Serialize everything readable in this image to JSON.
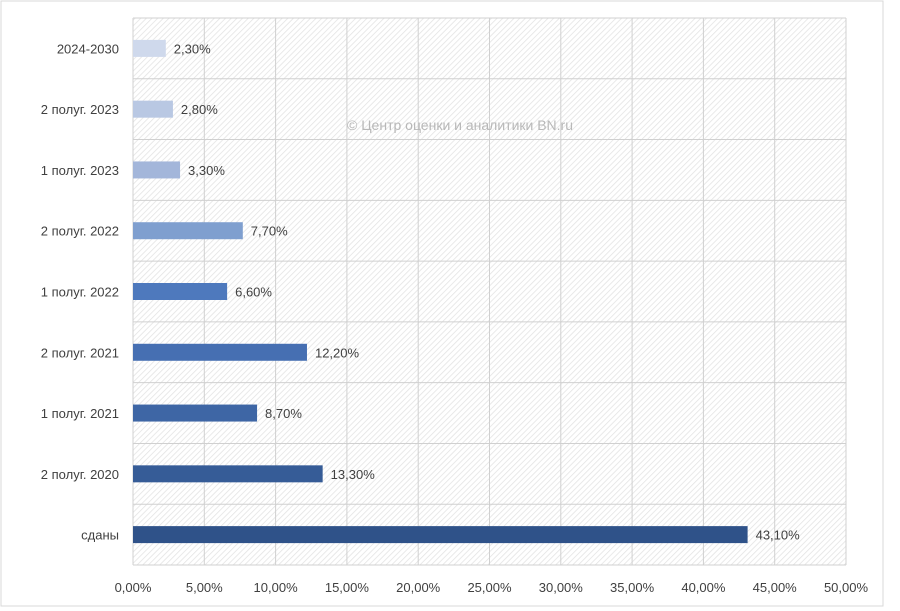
{
  "watermark": "© Центр оценки и аналитики BN.ru",
  "chart_data": {
    "type": "bar",
    "orientation": "horizontal",
    "categories": [
      "сданы",
      "2 полуг. 2020",
      "1 полуг. 2021",
      "2 полуг. 2021",
      "1 полуг. 2022",
      "2 полуг. 2022",
      "1 полуг. 2023",
      "2 полуг. 2023",
      "2024-2030"
    ],
    "values": [
      43.1,
      13.3,
      8.7,
      12.2,
      6.6,
      7.7,
      3.3,
      2.8,
      2.3
    ],
    "value_labels": [
      "43,10%",
      "13,30%",
      "8,70%",
      "12,20%",
      "6,60%",
      "7,70%",
      "3,30%",
      "2,80%",
      "2,30%"
    ],
    "bar_colors": [
      "#2f5289",
      "#365c97",
      "#3e66a5",
      "#466fb2",
      "#4e79bd",
      "#7f9fcf",
      "#a3b6da",
      "#b9c8e3",
      "#cfd9ec"
    ],
    "xlim": [
      0,
      50
    ],
    "x_ticks": [
      0,
      5,
      10,
      15,
      20,
      25,
      30,
      35,
      40,
      45,
      50
    ],
    "x_tick_labels": [
      "0,00%",
      "5,00%",
      "10,00%",
      "15,00%",
      "20,00%",
      "25,00%",
      "30,00%",
      "35,00%",
      "40,00%",
      "45,00%",
      "50,00%"
    ],
    "grid": true,
    "title": "",
    "xlabel": "",
    "ylabel": ""
  }
}
